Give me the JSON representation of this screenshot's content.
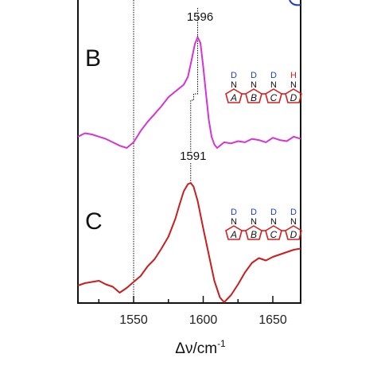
{
  "chart_data": {
    "type": "line",
    "title": "",
    "xlabel": "Δν/cm",
    "xlabel_sup": "-1",
    "xlim": [
      1510,
      1670
    ],
    "xticks": [
      1550,
      1600,
      1650
    ],
    "xtick_labels": [
      "1550",
      "1600",
      "1650"
    ],
    "grid": false,
    "panels": [
      {
        "label": "B",
        "color": "#d633d6",
        "peak_label": "1596",
        "peak_x": 1596,
        "x": [
          1510,
          1515,
          1520,
          1525,
          1530,
          1535,
          1540,
          1545,
          1550,
          1555,
          1560,
          1565,
          1570,
          1575,
          1580,
          1583,
          1586,
          1589,
          1592,
          1594,
          1596,
          1598,
          1600,
          1602,
          1604,
          1606,
          1608,
          1610,
          1612,
          1615,
          1620,
          1625,
          1630,
          1635,
          1640,
          1645,
          1650,
          1655,
          1660,
          1665,
          1670
        ],
        "y": [
          0.1,
          0.13,
          0.12,
          0.1,
          0.08,
          0.05,
          0.02,
          0.0,
          0.05,
          0.15,
          0.23,
          0.3,
          0.37,
          0.45,
          0.5,
          0.53,
          0.56,
          0.63,
          0.8,
          0.92,
          0.98,
          0.93,
          0.72,
          0.48,
          0.25,
          0.1,
          0.03,
          0.0,
          0.02,
          0.05,
          0.04,
          0.06,
          0.05,
          0.08,
          0.07,
          0.05,
          0.09,
          0.07,
          0.06,
          0.1,
          0.08
        ]
      },
      {
        "label": "C",
        "color": "#c81e1e",
        "peak_label": "1591",
        "peak_x": 1591,
        "x": [
          1510,
          1515,
          1520,
          1525,
          1530,
          1535,
          1540,
          1545,
          1550,
          1555,
          1560,
          1565,
          1570,
          1575,
          1580,
          1583,
          1586,
          1589,
          1591,
          1593,
          1596,
          1600,
          1604,
          1608,
          1612,
          1615,
          1620,
          1625,
          1630,
          1635,
          1640,
          1645,
          1650,
          1655,
          1660,
          1665,
          1670
        ],
        "y": [
          0.14,
          0.16,
          0.17,
          0.18,
          0.15,
          0.13,
          0.08,
          0.12,
          0.17,
          0.22,
          0.3,
          0.36,
          0.45,
          0.55,
          0.7,
          0.82,
          0.93,
          0.99,
          1.0,
          0.97,
          0.85,
          0.62,
          0.4,
          0.18,
          0.04,
          0.0,
          0.06,
          0.15,
          0.25,
          0.33,
          0.37,
          0.35,
          0.38,
          0.4,
          0.42,
          0.44,
          0.45
        ]
      }
    ]
  },
  "structures": [
    {
      "top_letters": [
        "D",
        "D",
        "D",
        "H"
      ],
      "top_colors": [
        "#1f3fbf",
        "#1f3fbf",
        "#1f3fbf",
        "#d81e1e"
      ],
      "n_letter": "N",
      "ring_letters": [
        "A",
        "B",
        "C",
        "D"
      ]
    },
    {
      "top_letters": [
        "D",
        "D",
        "D",
        "D"
      ],
      "top_colors": [
        "#1f3fbf",
        "#1f3fbf",
        "#1f3fbf",
        "#1f3fbf"
      ],
      "n_letter": "N",
      "ring_letters": [
        "A",
        "B",
        "C",
        "D"
      ]
    }
  ],
  "colors": {
    "axis": "#111111",
    "ring": "#d81e1e",
    "reference": "#111111",
    "top_blue_mark": "#1f3fbf"
  }
}
